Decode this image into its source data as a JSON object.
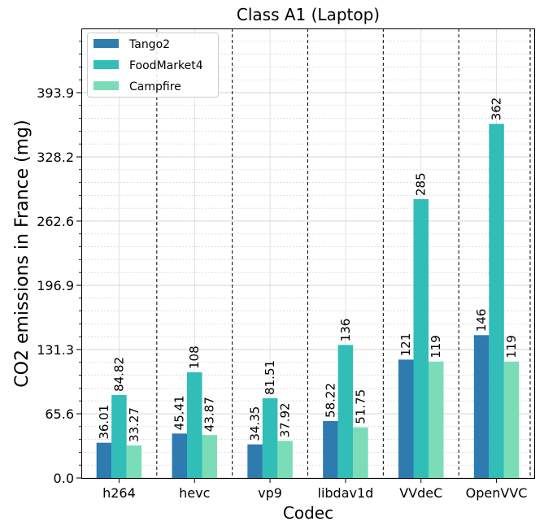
{
  "chart_data": {
    "type": "bar",
    "title": "Class A1 (Laptop)",
    "xlabel": "Codec",
    "ylabel": "CO2 emissions in France (mg)",
    "categories": [
      "h264",
      "hevc",
      "vp9",
      "libdav1d",
      "VVdeC",
      "OpenVVC"
    ],
    "series": [
      {
        "name": "Tango2",
        "color": "#2e7bb0",
        "values": [
          36.01,
          45.41,
          34.35,
          58.22,
          121,
          146
        ],
        "labels": [
          "36.01",
          "45.41",
          "34.35",
          "58.22",
          "121",
          "146"
        ]
      },
      {
        "name": "FoodMarket4",
        "color": "#31bdb8",
        "values": [
          84.82,
          108,
          81.51,
          136,
          285,
          362
        ],
        "labels": [
          "84.82",
          "108",
          "81.51",
          "136",
          "285",
          "362"
        ]
      },
      {
        "name": "Campfire",
        "color": "#7addb7",
        "values": [
          33.27,
          43.87,
          37.92,
          51.75,
          119,
          119
        ],
        "labels": [
          "33.27",
          "43.87",
          "37.92",
          "51.75",
          "119",
          "119"
        ]
      }
    ],
    "yticks": [
      0.0,
      65.6,
      131.3,
      196.9,
      262.6,
      328.2,
      393.9
    ],
    "ytick_labels": [
      "0.0",
      "65.6",
      "131.3",
      "196.9",
      "262.6",
      "328.2",
      "393.9"
    ],
    "ylim": [
      0,
      459.5
    ],
    "minor_tick_step": 13.13,
    "grid": true,
    "legend": "top-left",
    "separators": "dashed vertical lines between codec groups"
  }
}
